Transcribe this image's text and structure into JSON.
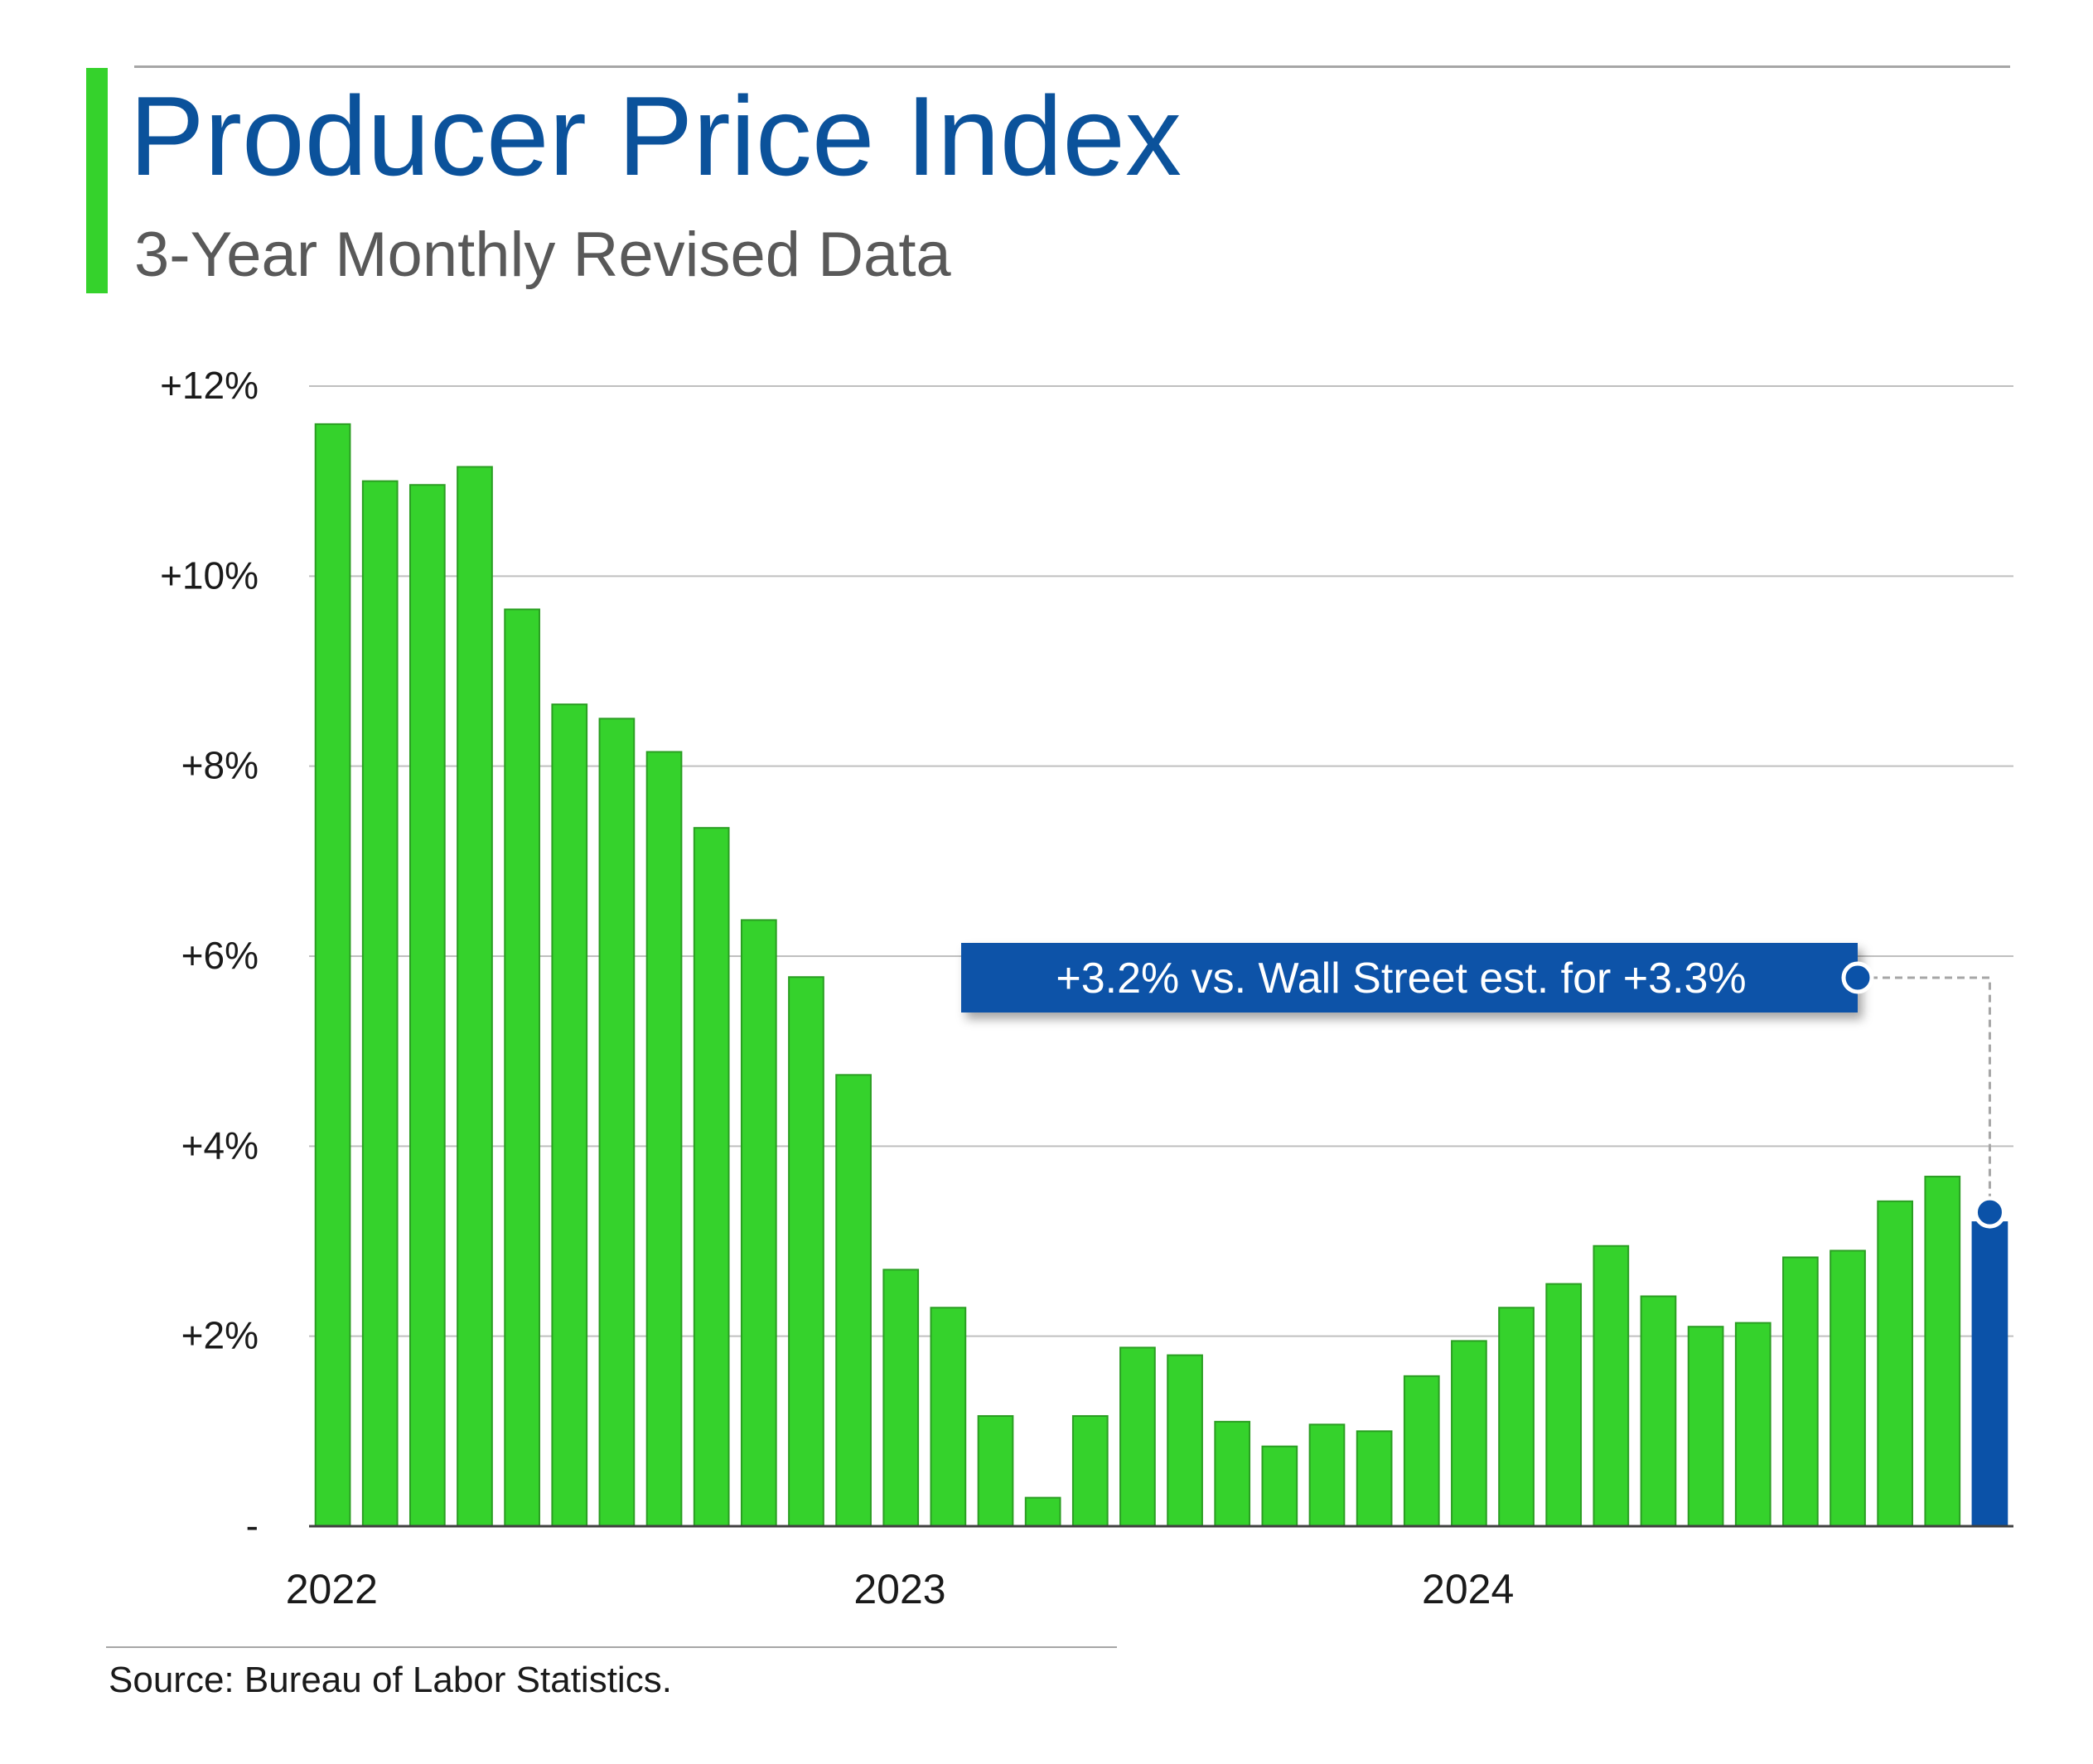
{
  "header": {
    "title": "Producer Price Index",
    "subtitle": "3-Year Monthly Revised Data"
  },
  "footer": {
    "source": "Source: Bureau of Labor Statistics."
  },
  "colors": {
    "bar": "#35d22c",
    "bar_border": "#2a9e22",
    "highlight": "#0b52a8",
    "title": "#0b529b",
    "grid": "#bfbfbf"
  },
  "chart_data": {
    "type": "bar",
    "title": "Producer Price Index",
    "subtitle": "3-Year Monthly Revised Data",
    "xlabel": "",
    "ylabel": "",
    "ylim": [
      0,
      12
    ],
    "grid": true,
    "y_ticks": [
      {
        "value": 0,
        "label": "-"
      },
      {
        "value": 2,
        "label": "+2%"
      },
      {
        "value": 4,
        "label": "+4%"
      },
      {
        "value": 6,
        "label": "+6%"
      },
      {
        "value": 8,
        "label": "+8%"
      },
      {
        "value": 10,
        "label": "+10%"
      },
      {
        "value": 12,
        "label": "+12%"
      }
    ],
    "x_ticks": [
      {
        "index": 0,
        "label": "2022"
      },
      {
        "index": 12,
        "label": "2023"
      },
      {
        "index": 24,
        "label": "2024"
      }
    ],
    "values": [
      11.6,
      11.0,
      10.96,
      11.15,
      9.65,
      8.65,
      8.5,
      8.15,
      7.35,
      6.38,
      5.78,
      4.75,
      2.7,
      2.3,
      1.16,
      0.3,
      1.16,
      1.88,
      1.8,
      1.1,
      0.84,
      1.07,
      1.0,
      1.58,
      1.95,
      2.3,
      2.55,
      2.95,
      2.42,
      2.1,
      2.14,
      2.83,
      2.9,
      3.42,
      3.68,
      3.2
    ],
    "highlight_index": 35,
    "annotation": {
      "text": "+3.2% vs. Wall Street est. for +3.3%",
      "index": 35,
      "value": 3.2
    }
  }
}
